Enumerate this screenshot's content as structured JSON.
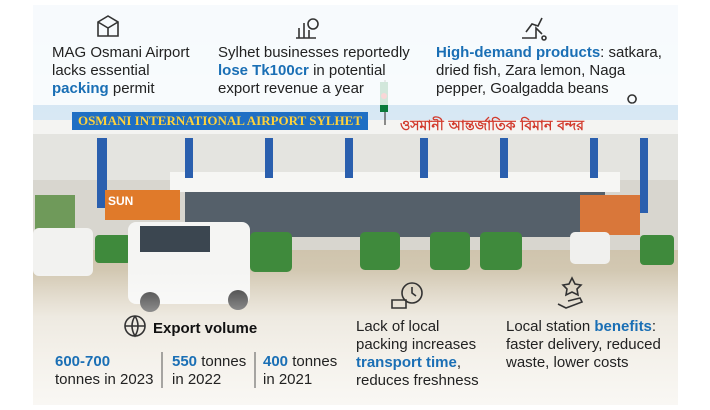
{
  "top_items": [
    {
      "parts": [
        {
          "text": "MAG Osmani Airport lacks essential "
        },
        {
          "text": "packing",
          "highlight": true
        },
        {
          "text": " permit"
        }
      ]
    },
    {
      "parts": [
        {
          "text": "Sylhet businesses reportedly "
        },
        {
          "text": "lose Tk100cr",
          "highlight": true
        },
        {
          "text": " in potential export revenue a year"
        }
      ]
    },
    {
      "parts": [
        {
          "text": "High-demand products",
          "highlight": true
        },
        {
          "text": ": satkara, dried fish, Zara lemon, Naga pepper, Goalgadda beans"
        }
      ]
    }
  ],
  "signs": {
    "english": "OSMANI INTERNATIONAL AIRPORT SYLHET",
    "bangla": "ওসমানী আন্তর্জাতিক বিমান বন্দর",
    "shop": "SUN"
  },
  "export": {
    "title": "Export volume",
    "entries": [
      {
        "amount": "600-700",
        "unit": "tonnes",
        "year": "in 2023"
      },
      {
        "amount": "550",
        "unit": "tonnes",
        "year": "in 2022"
      },
      {
        "amount": "400",
        "unit": "tonnes",
        "year": "in 2021"
      }
    ]
  },
  "bottom_items": [
    {
      "parts": [
        {
          "text": "Lack of local packing increases "
        },
        {
          "text": "transport time",
          "highlight": true
        },
        {
          "text": ", reduces freshness"
        }
      ]
    },
    {
      "parts": [
        {
          "text": "Local station "
        },
        {
          "text": "benefits",
          "highlight": true
        },
        {
          "text": ": faster delivery, reduced waste, lower costs"
        }
      ]
    }
  ]
}
